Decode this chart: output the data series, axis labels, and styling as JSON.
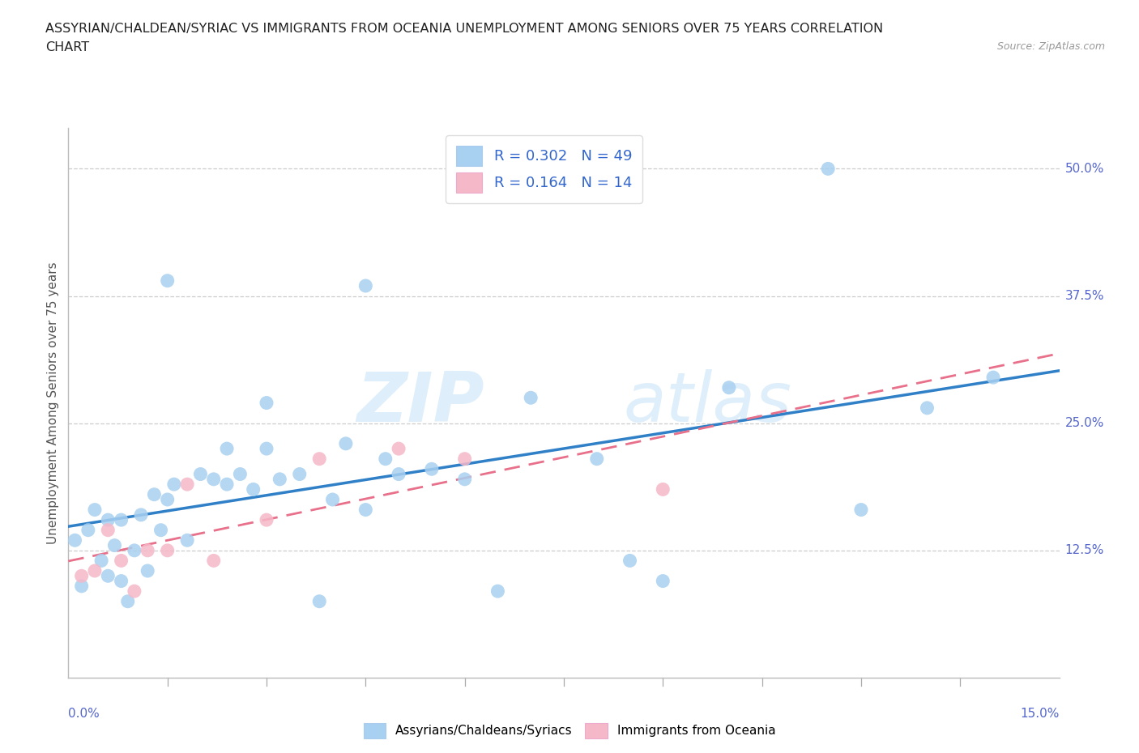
{
  "title_line1": "ASSYRIAN/CHALDEAN/SYRIAC VS IMMIGRANTS FROM OCEANIA UNEMPLOYMENT AMONG SENIORS OVER 75 YEARS CORRELATION",
  "title_line2": "CHART",
  "source": "Source: ZipAtlas.com",
  "ylabel": "Unemployment Among Seniors over 75 years",
  "ytick_vals": [
    0.0,
    0.125,
    0.25,
    0.375,
    0.5
  ],
  "ytick_labels": [
    "",
    "12.5%",
    "25.0%",
    "37.5%",
    "50.0%"
  ],
  "xlim": [
    0.0,
    0.15
  ],
  "ylim": [
    0.0,
    0.54
  ],
  "R_blue": 0.302,
  "N_blue": 49,
  "R_pink": 0.164,
  "N_pink": 14,
  "legend_label_blue": "Assyrians/Chaldeans/Syriacs",
  "legend_label_pink": "Immigrants from Oceania",
  "blue_color": "#A8D0F0",
  "pink_color": "#F5B8C8",
  "blue_line_color": "#3080C8",
  "pink_line_color": "#E8708A",
  "watermark_zip": "ZIP",
  "watermark_atlas": "atlas",
  "blue_scatter_x": [
    0.001,
    0.002,
    0.003,
    0.004,
    0.005,
    0.006,
    0.006,
    0.007,
    0.008,
    0.008,
    0.009,
    0.01,
    0.011,
    0.012,
    0.013,
    0.014,
    0.015,
    0.016,
    0.018,
    0.02,
    0.022,
    0.024,
    0.024,
    0.026,
    0.028,
    0.03,
    0.032,
    0.035,
    0.038,
    0.04,
    0.042,
    0.045,
    0.048,
    0.05,
    0.055,
    0.06,
    0.065,
    0.07,
    0.08,
    0.09,
    0.1,
    0.115,
    0.12,
    0.13,
    0.14,
    0.045,
    0.015,
    0.03,
    0.085
  ],
  "blue_scatter_y": [
    0.135,
    0.09,
    0.145,
    0.165,
    0.115,
    0.155,
    0.1,
    0.13,
    0.095,
    0.155,
    0.075,
    0.125,
    0.16,
    0.105,
    0.18,
    0.145,
    0.175,
    0.19,
    0.135,
    0.2,
    0.195,
    0.225,
    0.19,
    0.2,
    0.185,
    0.225,
    0.195,
    0.2,
    0.075,
    0.175,
    0.23,
    0.165,
    0.215,
    0.2,
    0.205,
    0.195,
    0.085,
    0.275,
    0.215,
    0.095,
    0.285,
    0.5,
    0.165,
    0.265,
    0.295,
    0.385,
    0.39,
    0.27,
    0.115
  ],
  "pink_scatter_x": [
    0.002,
    0.004,
    0.006,
    0.008,
    0.01,
    0.012,
    0.015,
    0.018,
    0.022,
    0.03,
    0.038,
    0.05,
    0.06,
    0.09
  ],
  "pink_scatter_y": [
    0.1,
    0.105,
    0.145,
    0.115,
    0.085,
    0.125,
    0.125,
    0.19,
    0.115,
    0.155,
    0.215,
    0.225,
    0.215,
    0.185
  ]
}
